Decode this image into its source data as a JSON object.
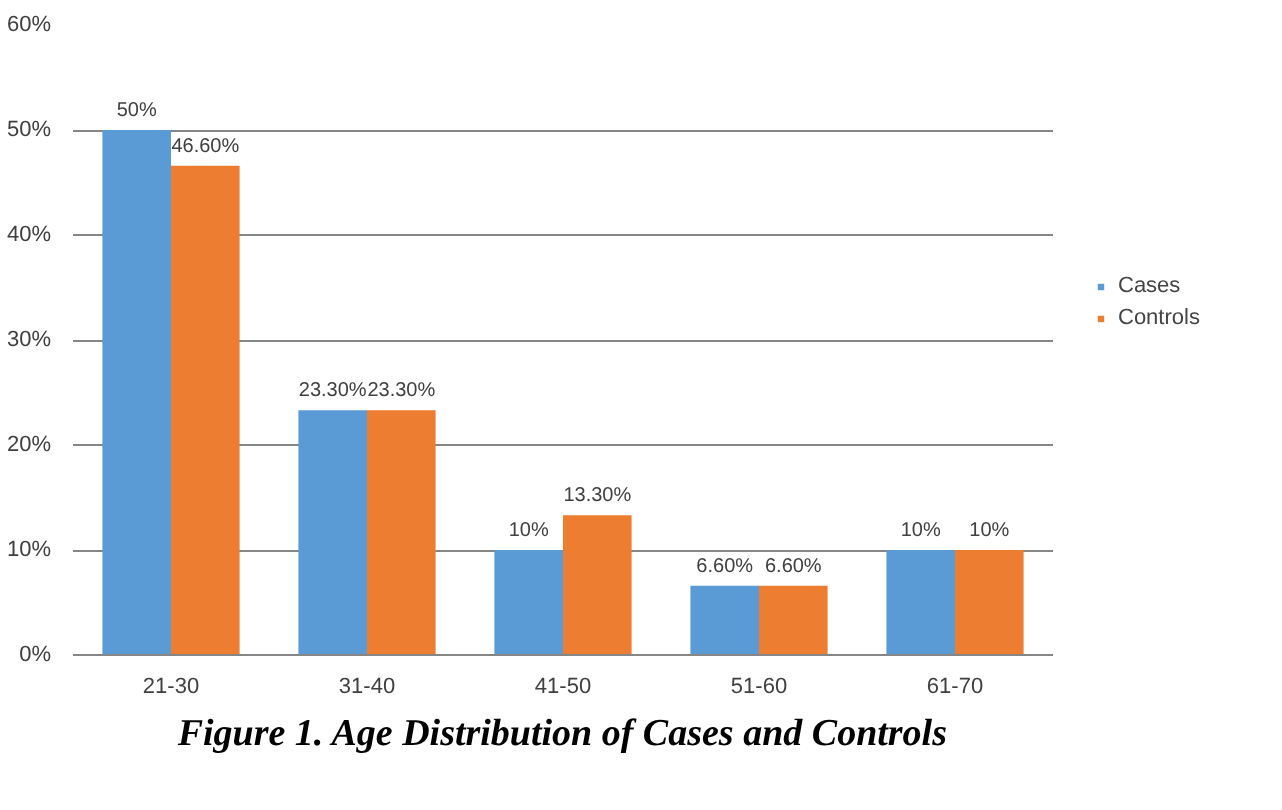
{
  "chart_data": {
    "type": "bar",
    "title": "Figure 1. Age Distribution of Cases and Controls",
    "categories": [
      "21-30",
      "31-40",
      "41-50",
      "51-60",
      "61-70"
    ],
    "series": [
      {
        "name": "Cases",
        "color": "#5b9bd5",
        "values": [
          50,
          23.3,
          10,
          6.6,
          10
        ],
        "value_labels": [
          "50%",
          "23.30%",
          "10%",
          "6.60%",
          "10%"
        ]
      },
      {
        "name": "Controls",
        "color": "#ed7d31",
        "values": [
          46.6,
          23.3,
          13.3,
          6.6,
          10
        ],
        "value_labels": [
          "46.60%",
          "23.30%",
          "13.30%",
          "6.60%",
          "10%"
        ]
      }
    ],
    "ylim": [
      0,
      60
    ],
    "yticks": [
      {
        "value": 0,
        "label": "0%"
      },
      {
        "value": 10,
        "label": "10%"
      },
      {
        "value": 20,
        "label": "20%"
      },
      {
        "value": 30,
        "label": "30%"
      },
      {
        "value": 40,
        "label": "40%"
      },
      {
        "value": 50,
        "label": "50%"
      },
      {
        "value": 60,
        "label": "60%"
      }
    ],
    "grid": "y",
    "legend": "right"
  }
}
